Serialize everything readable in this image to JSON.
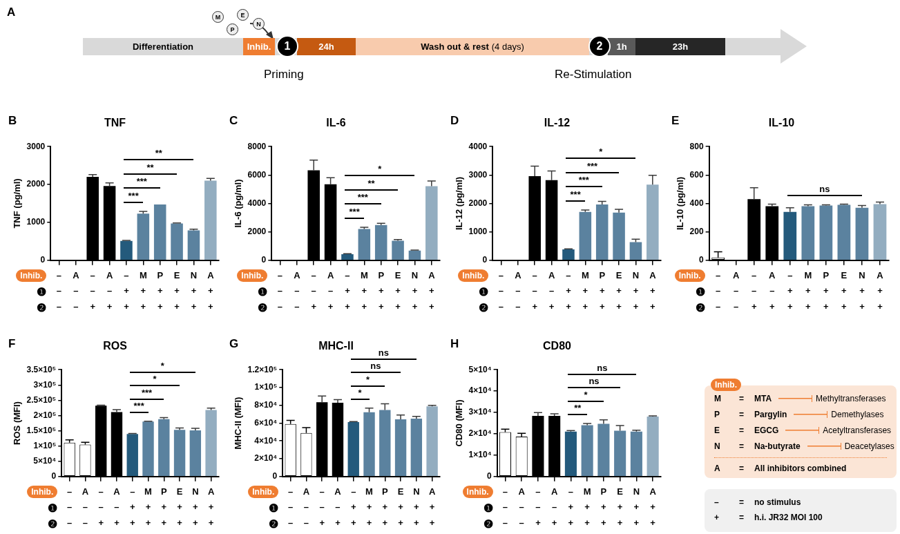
{
  "chart_data": [
    {
      "type": "other",
      "annotations": [
        "A",
        "M",
        "P",
        "E",
        "N",
        "Differentiation",
        "Inhib.",
        "1",
        "24h",
        "Wash out & rest",
        "(4 days)",
        "2",
        "1h",
        "23h",
        "Priming",
        "Re-Stimulation"
      ]
    },
    {
      "type": "bar",
      "title": "TNF",
      "ylabel": "TNF (pg/ml)",
      "categories": [
        "–\n–\n–",
        "A\n–\n–",
        "–\n–\n+",
        "A\n–\n+",
        "–\n+\n+",
        "M\n+\n+",
        "P\n+\n+",
        "E\n+\n+",
        "N\n+\n+",
        "A\n+\n+"
      ],
      "values": [
        0,
        0,
        2200,
        1960,
        510,
        1230,
        1470,
        970,
        790,
        2100
      ],
      "colors": [
        "#ffffff",
        "#ffffff",
        "#000000",
        "#000000",
        "#245a7c",
        "#5b829f",
        "#5b829f",
        "#5b829f",
        "#5b829f",
        "#93adc0"
      ],
      "errors": [
        null,
        null,
        [
          2200,
          2260
        ],
        [
          1960,
          2040
        ],
        [
          510,
          525
        ],
        [
          1230,
          1290
        ],
        null,
        [
          970,
          985
        ],
        [
          790,
          820
        ],
        [
          2100,
          2160
        ]
      ],
      "ylim": [
        0,
        3000
      ],
      "yticks": [
        0,
        1000,
        2000,
        3000
      ],
      "annotations": [
        "B",
        "Inhib.",
        "❶",
        "❷",
        "***",
        "***",
        "**",
        "**"
      ]
    },
    {
      "type": "bar",
      "title": "IL-6",
      "ylabel": "IL-6 (pg/ml)",
      "categories": [
        "–\n–\n–",
        "A\n–\n–",
        "–\n–\n+",
        "A\n–\n+",
        "–\n+\n+",
        "M\n+\n+",
        "P\n+\n+",
        "E\n+\n+",
        "N\n+\n+",
        "A\n+\n+"
      ],
      "values": [
        0,
        0,
        6330,
        5350,
        430,
        2200,
        2480,
        1370,
        680,
        5220
      ],
      "colors": [
        "#ffffff",
        "#ffffff",
        "#000000",
        "#000000",
        "#245a7c",
        "#5b829f",
        "#5b829f",
        "#5b829f",
        "#5b829f",
        "#93adc0"
      ],
      "errors": [
        null,
        null,
        [
          6330,
          7050
        ],
        [
          5350,
          5810
        ],
        [
          430,
          460
        ],
        [
          2200,
          2320
        ],
        [
          2480,
          2600
        ],
        [
          1370,
          1460
        ],
        [
          680,
          720
        ],
        [
          5220,
          5580
        ]
      ],
      "ylim": [
        0,
        8000
      ],
      "yticks": [
        0,
        2000,
        4000,
        6000,
        8000
      ],
      "annotations": [
        "C",
        "Inhib.",
        "❶",
        "❷",
        "***",
        "***",
        "**",
        "*"
      ]
    },
    {
      "type": "bar",
      "title": "IL-12",
      "ylabel": "IL-12 (pg/ml)",
      "categories": [
        "–\n–\n–",
        "A\n–\n–",
        "–\n–\n+",
        "A\n–\n+",
        "–\n+\n+",
        "M\n+\n+",
        "P\n+\n+",
        "E\n+\n+",
        "N\n+\n+",
        "A\n+\n+"
      ],
      "values": [
        0,
        0,
        2960,
        2820,
        380,
        1700,
        1960,
        1680,
        640,
        2660
      ],
      "colors": [
        "#ffffff",
        "#ffffff",
        "#000000",
        "#000000",
        "#245a7c",
        "#5b829f",
        "#5b829f",
        "#5b829f",
        "#5b829f",
        "#93adc0"
      ],
      "errors": [
        null,
        null,
        [
          2960,
          3310
        ],
        [
          2820,
          3140
        ],
        [
          380,
          400
        ],
        [
          1700,
          1770
        ],
        [
          1960,
          2070
        ],
        [
          1680,
          1790
        ],
        [
          640,
          740
        ],
        [
          2660,
          2990
        ]
      ],
      "ylim": [
        0,
        4000
      ],
      "yticks": [
        0,
        1000,
        2000,
        3000,
        4000
      ],
      "annotations": [
        "D",
        "Inhib.",
        "❶",
        "❷",
        "***",
        "***",
        "***",
        "*"
      ]
    },
    {
      "type": "bar",
      "title": "IL-10",
      "ylabel": "IL-10 (pg/ml)",
      "categories": [
        "–\n–\n–",
        "A\n–\n–",
        "–\n–\n+",
        "A\n–\n+",
        "–\n+\n+",
        "M\n+\n+",
        "P\n+\n+",
        "E\n+\n+",
        "N\n+\n+",
        "A\n+\n+"
      ],
      "values": [
        20,
        0,
        430,
        380,
        340,
        380,
        385,
        390,
        370,
        395
      ],
      "colors": [
        "#ffffff",
        "#ffffff",
        "#000000",
        "#000000",
        "#245a7c",
        "#5b829f",
        "#5b829f",
        "#5b829f",
        "#5b829f",
        "#93adc0"
      ],
      "errors": [
        [
          20,
          60
        ],
        null,
        [
          430,
          510
        ],
        [
          380,
          395
        ],
        [
          340,
          370
        ],
        [
          380,
          390
        ],
        [
          385,
          390
        ],
        [
          390,
          395
        ],
        [
          370,
          385
        ],
        [
          395,
          410
        ]
      ],
      "ylim": [
        0,
        800
      ],
      "yticks": [
        0,
        200,
        400,
        600,
        800
      ],
      "annotations": [
        "E",
        "Inhib.",
        "❶",
        "❷",
        "ns"
      ]
    },
    {
      "type": "bar",
      "title": "ROS",
      "ylabel": "ROS (MFI)",
      "categories": [
        "–\n–\n–",
        "A\n–\n–",
        "–\n–\n+",
        "A\n–\n+",
        "–\n+\n+",
        "M\n+\n+",
        "P\n+\n+",
        "E\n+\n+",
        "N\n+\n+",
        "A\n+\n+"
      ],
      "values": [
        111000,
        105000,
        232000,
        211000,
        139000,
        180000,
        188000,
        153000,
        151000,
        218000
      ],
      "colors": [
        "#ffffff",
        "#ffffff",
        "#000000",
        "#000000",
        "#245a7c",
        "#5b829f",
        "#5b829f",
        "#5b829f",
        "#5b829f",
        "#93adc0"
      ],
      "errors": [
        [
          111000,
          120000
        ],
        [
          105000,
          112000
        ],
        [
          232000,
          234000
        ],
        [
          211000,
          219000
        ],
        [
          139000,
          141000
        ],
        [
          180000,
          181000
        ],
        [
          188000,
          193000
        ],
        [
          153000,
          159000
        ],
        [
          151000,
          158000
        ],
        [
          218000,
          224000
        ]
      ],
      "ylim": [
        0,
        350000
      ],
      "yticks": [
        0,
        {
          "value": 50000,
          "label": "5×10⁴"
        },
        {
          "value": 100000,
          "label": "1×10⁵"
        },
        {
          "value": 150000,
          "label": "1.5×10⁵"
        },
        {
          "value": 200000,
          "label": "2×10⁵"
        },
        {
          "value": 250000,
          "label": "2.5×10⁵"
        },
        {
          "value": 300000,
          "label": "3×10⁵"
        },
        {
          "value": 350000,
          "label": "3.5×10⁵"
        }
      ],
      "annotations": [
        "F",
        "Inhib.",
        "❶",
        "❷",
        "***",
        "***",
        "*",
        "*"
      ]
    },
    {
      "type": "bar",
      "title": "MHC-II",
      "ylabel": "MHC-II (MFI)",
      "categories": [
        "–\n–\n–",
        "A\n–\n–",
        "–\n–\n+",
        "A\n–\n+",
        "–\n+\n+",
        "M\n+\n+",
        "P\n+\n+",
        "E\n+\n+",
        "N\n+\n+",
        "A\n+\n+"
      ],
      "values": [
        59000,
        49000,
        83400,
        82800,
        61200,
        72300,
        74700,
        64200,
        65100,
        78900
      ],
      "colors": [
        "#ffffff",
        "#ffffff",
        "#000000",
        "#000000",
        "#245a7c",
        "#5b829f",
        "#5b829f",
        "#5b829f",
        "#5b829f",
        "#93adc0"
      ],
      "errors": [
        [
          59000,
          63000
        ],
        [
          49000,
          55000
        ],
        [
          83400,
          90400
        ],
        [
          82800,
          86300
        ],
        [
          61200,
          61700
        ],
        [
          72300,
          76800
        ],
        [
          74700,
          81700
        ],
        [
          64200,
          69200
        ],
        [
          65100,
          67600
        ],
        [
          78900,
          79900
        ]
      ],
      "ylim": [
        0,
        120000
      ],
      "yticks": [
        0,
        {
          "value": 20000,
          "label": "2×10⁴"
        },
        {
          "value": 40000,
          "label": "4×10⁴"
        },
        {
          "value": 60000,
          "label": "6×10⁴"
        },
        {
          "value": 80000,
          "label": "8×10⁴"
        },
        {
          "value": 100000,
          "label": "1×10⁵"
        },
        {
          "value": 120000,
          "label": "1.2×10⁵"
        }
      ],
      "annotations": [
        "G",
        "Inhib.",
        "❶",
        "❷",
        "*",
        "*",
        "ns",
        "ns"
      ]
    },
    {
      "type": "bar",
      "title": "CD80",
      "ylabel": "CD80 (MFI)",
      "categories": [
        "–\n–\n–",
        "A\n–\n–",
        "–\n–\n+",
        "A\n–\n+",
        "–\n+\n+",
        "M\n+\n+",
        "P\n+\n+",
        "E\n+\n+",
        "N\n+\n+",
        "A\n+\n+"
      ],
      "values": [
        20800,
        18700,
        28400,
        28400,
        21000,
        24000,
        24700,
        21400,
        21000,
        28100
      ],
      "colors": [
        "#ffffff",
        "#ffffff",
        "#000000",
        "#000000",
        "#245a7c",
        "#5b829f",
        "#5b829f",
        "#5b829f",
        "#5b829f",
        "#93adc0"
      ],
      "errors": [
        [
          20800,
          22200
        ],
        [
          18700,
          20200
        ],
        [
          28400,
          29900
        ],
        [
          28400,
          29400
        ],
        [
          21000,
          21500
        ],
        [
          24000,
          24800
        ],
        [
          24700,
          26500
        ],
        [
          21400,
          23900
        ],
        [
          21000,
          21700
        ],
        [
          28100,
          28400
        ]
      ],
      "ylim": [
        0,
        50000
      ],
      "yticks": [
        0,
        {
          "value": 10000,
          "label": "1×10⁴"
        },
        {
          "value": 20000,
          "label": "2×10⁴"
        },
        {
          "value": 30000,
          "label": "3×10⁴"
        },
        {
          "value": 40000,
          "label": "4×10⁴"
        },
        {
          "value": 50000,
          "label": "5×10⁴"
        }
      ],
      "annotations": [
        "H",
        "Inhib.",
        "❶",
        "❷",
        "**",
        "*",
        "ns",
        "ns"
      ]
    },
    {
      "type": "other",
      "annotations": [
        "Inhib.",
        "M",
        "=",
        "MTA",
        "Methyltransferases",
        "P",
        "=",
        "Pargylin",
        "Demethylases",
        "E",
        "=",
        "EGCG",
        "Acetyltransferases",
        "N",
        "=",
        "Na-butyrate",
        "Deacetylases",
        "A",
        "=",
        "All inhibitors combined",
        "–",
        "=",
        "no stimulus",
        "+",
        "=",
        "h.i. JR32 MOI 100"
      ]
    }
  ]
}
